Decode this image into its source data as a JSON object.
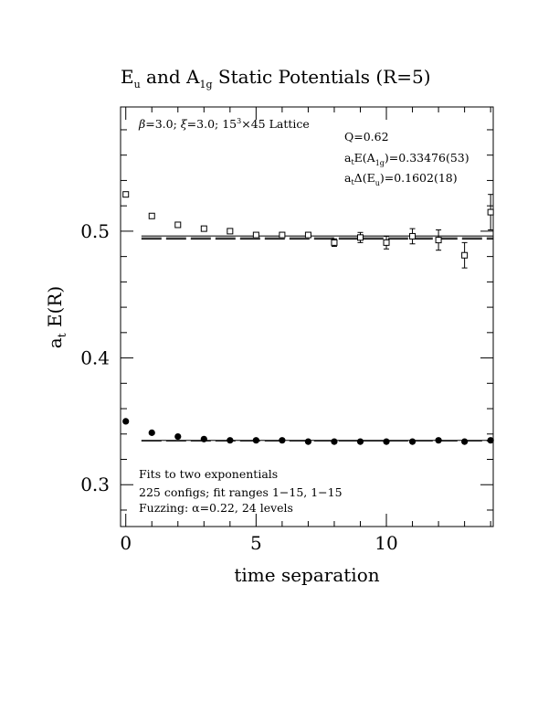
{
  "chart_data": {
    "type": "scatter",
    "title": {
      "main": "E",
      "sub1": "u",
      "mid": " and A",
      "sub2": "1g",
      "rest": " Static Potentials (R=5)"
    },
    "xlabel": "time separation",
    "ylabel": {
      "main": "a",
      "sub": "t",
      "rest": " E(R)"
    },
    "xlim": [
      -0.2,
      14.1
    ],
    "ylim": [
      0.267,
      0.598
    ],
    "xticks": [
      0,
      5,
      10
    ],
    "xtick_labels": [
      "0",
      "5",
      "10"
    ],
    "yticks": [
      0.3,
      0.4,
      0.5
    ],
    "ytick_labels": [
      "0.3",
      "0.4",
      "0.5"
    ],
    "grid": false,
    "series": [
      {
        "marker": "open-square",
        "x": [
          0,
          1,
          2,
          3,
          4,
          5,
          6,
          7,
          8,
          9,
          10,
          11,
          12,
          13,
          14
        ],
        "y": [
          0.529,
          0.512,
          0.505,
          0.502,
          0.5,
          0.497,
          0.497,
          0.497,
          0.491,
          0.495,
          0.491,
          0.496,
          0.493,
          0.481,
          0.515
        ],
        "err": [
          0.001,
          0.001,
          0.001,
          0.001,
          0.0015,
          0.0015,
          0.002,
          0.002,
          0.003,
          0.004,
          0.005,
          0.006,
          0.008,
          0.01,
          0.014
        ]
      },
      {
        "marker": "filled-circle",
        "x": [
          0,
          1,
          2,
          3,
          4,
          5,
          6,
          7,
          8,
          9,
          10,
          11,
          12,
          13,
          14
        ],
        "y": [
          0.35,
          0.341,
          0.338,
          0.336,
          0.335,
          0.335,
          0.335,
          0.334,
          0.334,
          0.334,
          0.334,
          0.334,
          0.335,
          0.334,
          0.335
        ],
        "err": [
          0,
          0,
          0,
          0,
          0,
          0,
          0,
          0,
          0,
          0,
          0,
          0,
          0,
          0,
          0
        ]
      }
    ],
    "fit_lines": [
      {
        "y": 0.4962,
        "x_range": [
          0.6,
          14.1
        ],
        "style": "solid"
      },
      {
        "y": 0.4948,
        "x_range": [
          0.6,
          14.1
        ],
        "style": "dashed"
      },
      {
        "y": 0.4938,
        "x_range": [
          0.6,
          14.1
        ],
        "style": "dashed"
      },
      {
        "y": 0.335,
        "x_range": [
          0.6,
          14.1
        ],
        "style": "solid"
      },
      {
        "y": 0.3345,
        "x_range": [
          0.6,
          14.1
        ],
        "style": "dashed"
      }
    ],
    "annotations": {
      "lattice": {
        "beta": "β",
        "text1": "=3.0; ",
        "xi": "ξ",
        "text2": "=3.0; 15",
        "sup": "3",
        "text3": "×45 Lattice"
      },
      "q": "Q=0.62",
      "ea1g": {
        "a": "a",
        "t": "t",
        "mid": "E(A",
        "sub": "1g",
        "rest": ")=0.33476(53)"
      },
      "deu": {
        "a": "a",
        "t": "t",
        "mid": "Δ(E",
        "sub": "u",
        "rest": ")=0.1602(18)"
      },
      "fits": [
        "Fits to two exponentials",
        "225 configs; fit ranges 1−15, 1−15",
        "Fuzzing: α=0.22, 24 levels"
      ]
    }
  }
}
